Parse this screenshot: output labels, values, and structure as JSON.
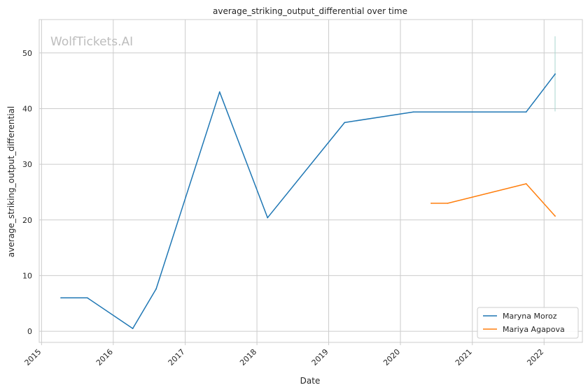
{
  "chart_data": {
    "type": "line",
    "title": "average_striking_output_differential over time",
    "xlabel": "Date",
    "ylabel": "average_striking_output_differential",
    "watermark": "WolfTickets.AI",
    "x_ticks": [
      "2015",
      "2016",
      "2017",
      "2018",
      "2019",
      "2020",
      "2021",
      "2022"
    ],
    "y_ticks": [
      "0",
      "10",
      "20",
      "30",
      "40",
      "50"
    ],
    "xlim": [
      "2014-12-20",
      "2022-07-15"
    ],
    "ylim": [
      -2,
      56
    ],
    "grid": true,
    "legend_position": "bottom-right",
    "series": [
      {
        "name": "Maryna Moroz",
        "color": "#1f77b4",
        "points": [
          {
            "x": "2015-04-10",
            "y": 6.0
          },
          {
            "x": "2015-08-22",
            "y": 6.0
          },
          {
            "x": "2016-04-09",
            "y": 0.5
          },
          {
            "x": "2016-08-06",
            "y": 7.6
          },
          {
            "x": "2017-06-25",
            "y": 43.0
          },
          {
            "x": "2018-02-24",
            "y": 20.4
          },
          {
            "x": "2019-03-23",
            "y": 37.5
          },
          {
            "x": "2020-03-07",
            "y": 39.4
          },
          {
            "x": "2021-10-02",
            "y": 39.4
          },
          {
            "x": "2022-02-26",
            "y": 46.2
          }
        ]
      },
      {
        "name": "Mariya Agapova",
        "color": "#ff7f0e",
        "points": [
          {
            "x": "2020-06-06",
            "y": 23.0
          },
          {
            "x": "2020-08-29",
            "y": 23.0
          },
          {
            "x": "2021-10-02",
            "y": 26.5
          },
          {
            "x": "2022-02-26",
            "y": 20.7
          }
        ]
      }
    ],
    "error_bar": {
      "x": "2022-02-26",
      "low": 39.5,
      "high": 53.0,
      "color": "#a8d5d0"
    }
  }
}
